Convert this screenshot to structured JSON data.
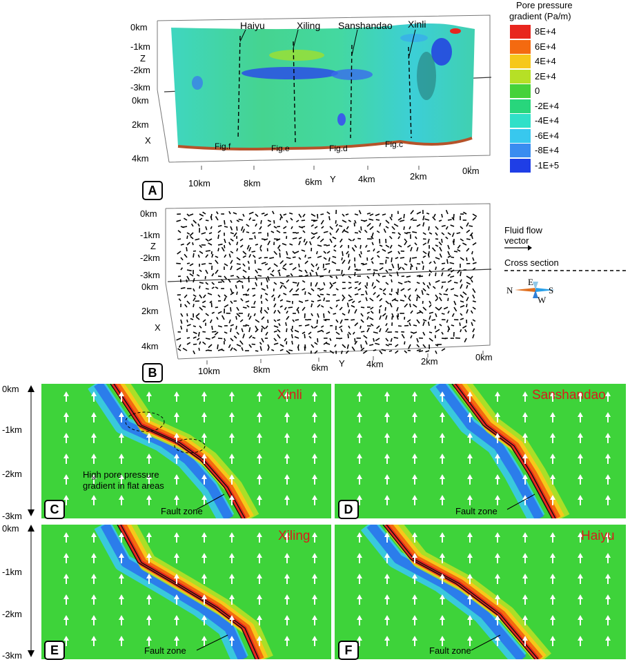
{
  "panel_a": {
    "letter": "A",
    "z_ticks": [
      "0km",
      "-1km",
      "Z",
      "-2km",
      "-3km"
    ],
    "x_ticks": [
      "0km",
      "2km",
      "X",
      "4km"
    ],
    "y_ticks": [
      "10km",
      "8km",
      "6km",
      "Y",
      "4km",
      "2km",
      "0km"
    ],
    "sections": [
      "Haiyu",
      "Xiling",
      "Sanshandao",
      "Xinli"
    ],
    "fig_labels": [
      "Fig.f",
      "Fig.e",
      "Fig.d",
      "Fig.c"
    ]
  },
  "panel_b": {
    "letter": "B",
    "z_ticks": [
      "0km",
      "-1km",
      "Z",
      "-2km",
      "-3km"
    ],
    "x_ticks": [
      "0km",
      "2km",
      "X",
      "4km"
    ],
    "y_ticks": [
      "10km",
      "8km",
      "6km",
      "Y",
      "4km",
      "2km",
      "0km"
    ]
  },
  "legend": {
    "title_line1": "Pore pressure",
    "title_line2": "gradient (Pa/m)",
    "entries": [
      {
        "label": "8E+4",
        "color": "#e8261e"
      },
      {
        "label": "6E+4",
        "color": "#f46a10"
      },
      {
        "label": "4E+4",
        "color": "#f6c81a"
      },
      {
        "label": "2E+4",
        "color": "#b6e026"
      },
      {
        "label": "0",
        "color": "#46d23a"
      },
      {
        "label": "-2E+4",
        "color": "#28d67c"
      },
      {
        "label": "-4E+4",
        "color": "#30e0c8"
      },
      {
        "label": "-6E+4",
        "color": "#38c8ee"
      },
      {
        "label": "-8E+4",
        "color": "#3a8cf0"
      },
      {
        "label": "-1E+5",
        "color": "#1f3ee6"
      }
    ],
    "flow_line1": "Fluid flow",
    "flow_line2": "vector",
    "cross_section": "Cross section",
    "compass": {
      "n": "N",
      "e": "E",
      "s": "S",
      "w": "W"
    }
  },
  "sections": {
    "c": {
      "letter": "C",
      "name": "Xinli",
      "fault": "Fault zone",
      "annotation_line1": "High pore pressure",
      "annotation_line2": "gradient in flat areas"
    },
    "d": {
      "letter": "D",
      "name": "Sanshandao",
      "fault": "Fault zone"
    },
    "e": {
      "letter": "E",
      "name": "Xiling",
      "fault": "Fault zone"
    },
    "f": {
      "letter": "F",
      "name": "Haiyu",
      "fault": "Fault zone"
    }
  },
  "depth_axis": [
    "0km",
    "-1km",
    "-2km",
    "-3km"
  ]
}
